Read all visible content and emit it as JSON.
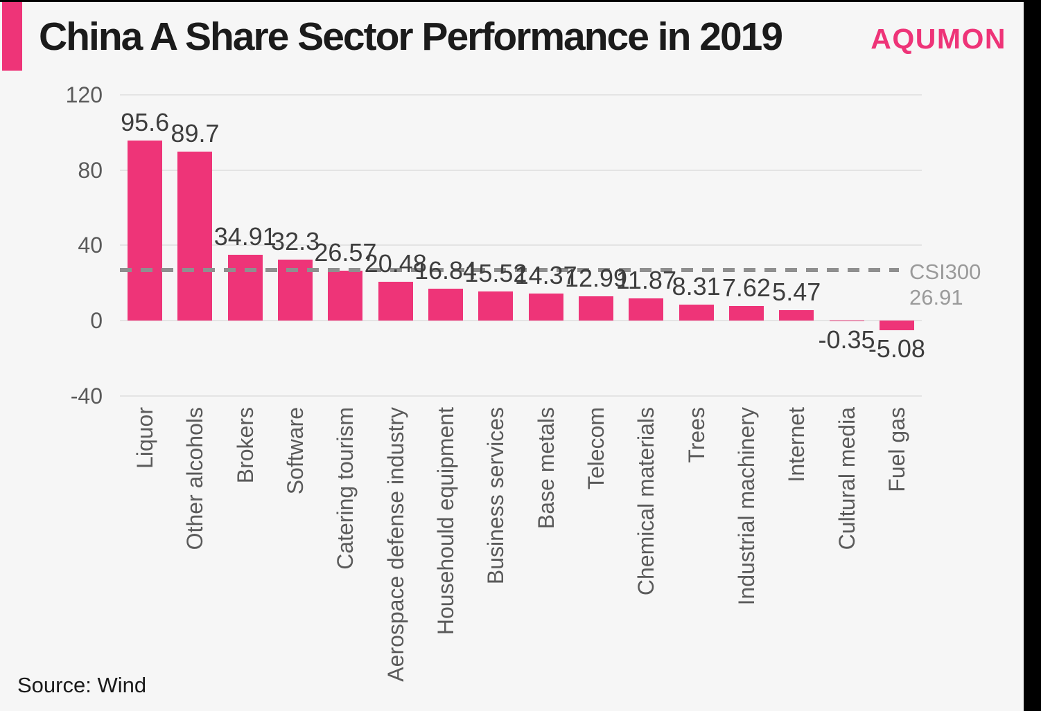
{
  "page": {
    "background_color": "#f6f6f6",
    "edge_color": "#000000"
  },
  "header": {
    "title": "China A Share Sector Performance in 2019",
    "logo": "AQUMON",
    "accent_color": "#ee3478",
    "logo_color": "#ee3478"
  },
  "chart_data": {
    "type": "bar",
    "title": "China A Share Sector Performance in 2019",
    "categories": [
      "Liquor",
      "Other alcohols",
      "Brokers",
      "Software",
      "Catering tourism",
      "Aerospace defense industry",
      "Househould equipment",
      "Business services",
      "Base metals",
      "Telecom",
      "Chemical materials",
      "Trees",
      "Industrial machinery",
      "Internet",
      "Cultural media",
      "Fuel gas"
    ],
    "values": [
      95.6,
      89.7,
      34.91,
      32.3,
      26.57,
      20.48,
      16.84,
      15.52,
      14.37,
      12.99,
      11.87,
      8.31,
      7.62,
      5.47,
      -0.35,
      -5.08
    ],
    "value_labels": [
      "95.6",
      "89.7",
      "34.91",
      "32.3",
      "26.57",
      "20.48",
      "16.84",
      "15.52",
      "14.37",
      "12.99",
      "11.87",
      "8.31",
      "7.62",
      "5.47",
      "-0.35",
      "-5.08"
    ],
    "xlabel": "",
    "ylabel": "",
    "yticks": [
      120,
      80,
      40,
      0,
      -40
    ],
    "ylim": [
      -40,
      120
    ],
    "grid": true,
    "legend": false,
    "bar_color": "#ee3478",
    "gridline_color": "#e4e4e4",
    "tick_color": "#5a5a5a",
    "value_label_color": "#3d3d3d",
    "benchmark": {
      "label": "CSI300",
      "value": 26.91,
      "value_text": "26.91",
      "line_color": "#8f8f8f",
      "label_color": "#9a9a9a"
    }
  },
  "footer": {
    "source": "Source: Wind"
  }
}
